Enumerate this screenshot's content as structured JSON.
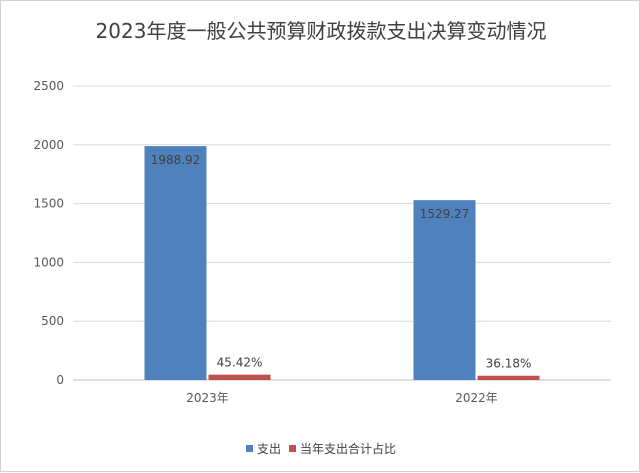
{
  "chart_data": {
    "type": "bar",
    "title": "2023年度一般公共预算财政拨款支出决算变动情况",
    "categories": [
      "2023年",
      "2022年"
    ],
    "ylim": [
      0,
      2500
    ],
    "yticks": [
      0,
      500,
      1000,
      1500,
      2000,
      2500
    ],
    "grid": true,
    "legend_position": "bottom",
    "series": [
      {
        "name": "支出",
        "values": [
          1988.92,
          1529.27
        ],
        "labels": [
          "1988.92",
          "1529.27"
        ],
        "color": "#4f81bd"
      },
      {
        "name": "当年支出合计占比",
        "values": [
          45.42,
          36.18
        ],
        "labels": [
          "45.42%",
          "36.18%"
        ],
        "color": "#c0504d"
      }
    ]
  }
}
